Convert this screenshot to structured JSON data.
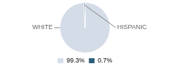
{
  "chart_data": {
    "type": "pie",
    "categories": [
      "WHITE",
      "HISPANIC"
    ],
    "values": [
      99.3,
      0.7
    ],
    "value_labels": [
      "99.3%",
      "0.7%"
    ],
    "colors": [
      "#d4dce8",
      "#2a5f78"
    ],
    "legend": "bottom"
  }
}
